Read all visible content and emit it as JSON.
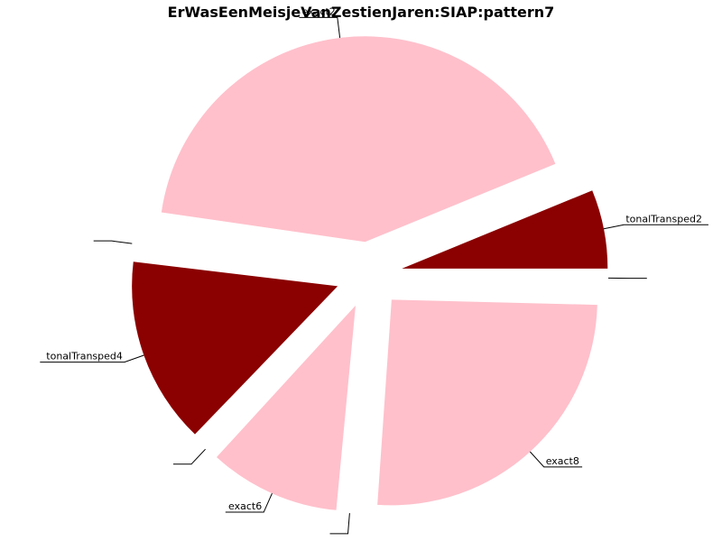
{
  "chart_data": {
    "type": "pie",
    "title": "ErWasEenMeisjeVanZestienJaren:SIAP:pattern7",
    "slices": [
      {
        "label": "tonalTransped2",
        "value": 6.2,
        "color": "#8b0000"
      },
      {
        "label": "exact2",
        "value": 41.5,
        "color": "#ffc0cb"
      },
      {
        "label": "",
        "value": 0.4,
        "color": "#ffffff"
      },
      {
        "label": "tonalTransped4",
        "value": 14.7,
        "color": "#8b0000"
      },
      {
        "label": "",
        "value": 0.4,
        "color": "#ffffff"
      },
      {
        "label": "exact6",
        "value": 10.3,
        "color": "#ffc0cb"
      },
      {
        "label": "",
        "value": 0.4,
        "color": "#ffffff"
      },
      {
        "label": "exact8",
        "value": 25.7,
        "color": "#ffc0cb"
      },
      {
        "label": "",
        "value": 0.4,
        "color": "#ffffff"
      }
    ]
  }
}
